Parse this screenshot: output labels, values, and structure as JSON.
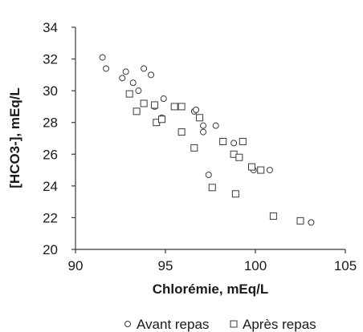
{
  "chart_data": {
    "type": "scatter",
    "xlabel": "Chlorémie, mEq/L",
    "ylabel": "[HCO3-], mEq/L",
    "xlim": [
      90,
      105
    ],
    "ylim": [
      20,
      34
    ],
    "xticks": [
      90,
      95,
      100,
      105
    ],
    "yticks": [
      20,
      22,
      24,
      26,
      28,
      30,
      32,
      34
    ],
    "grid": false,
    "legend_position": "bottom",
    "series": [
      {
        "name": "Avant repas",
        "marker": "circle",
        "color": "#3a3a3a",
        "points": [
          [
            91.5,
            32.1
          ],
          [
            91.7,
            31.4
          ],
          [
            92.6,
            30.8
          ],
          [
            92.8,
            31.2
          ],
          [
            93.2,
            30.5
          ],
          [
            93.5,
            30.0
          ],
          [
            93.8,
            31.4
          ],
          [
            94.2,
            31.0
          ],
          [
            94.4,
            29.0
          ],
          [
            94.9,
            29.5
          ],
          [
            94.8,
            28.3
          ],
          [
            96.6,
            28.7
          ],
          [
            96.7,
            28.8
          ],
          [
            97.1,
            27.8
          ],
          [
            97.1,
            27.4
          ],
          [
            97.4,
            24.7
          ],
          [
            97.8,
            27.8
          ],
          [
            98.8,
            26.7
          ],
          [
            99.9,
            25.0
          ],
          [
            100.8,
            25.0
          ],
          [
            103.1,
            21.7
          ]
        ]
      },
      {
        "name": "Après repas",
        "marker": "square",
        "color": "#3a3a3a",
        "points": [
          [
            93.0,
            29.8
          ],
          [
            93.4,
            28.7
          ],
          [
            93.8,
            29.2
          ],
          [
            94.4,
            29.1
          ],
          [
            94.5,
            28.0
          ],
          [
            94.8,
            28.2
          ],
          [
            95.5,
            29.0
          ],
          [
            95.9,
            29.0
          ],
          [
            95.9,
            27.4
          ],
          [
            96.6,
            26.4
          ],
          [
            96.9,
            28.3
          ],
          [
            97.6,
            23.9
          ],
          [
            98.2,
            26.8
          ],
          [
            98.8,
            26.0
          ],
          [
            98.9,
            23.5
          ],
          [
            99.1,
            25.8
          ],
          [
            99.3,
            26.8
          ],
          [
            99.8,
            25.2
          ],
          [
            100.3,
            25.0
          ],
          [
            101.0,
            22.1
          ],
          [
            102.5,
            21.8
          ]
        ]
      }
    ]
  }
}
